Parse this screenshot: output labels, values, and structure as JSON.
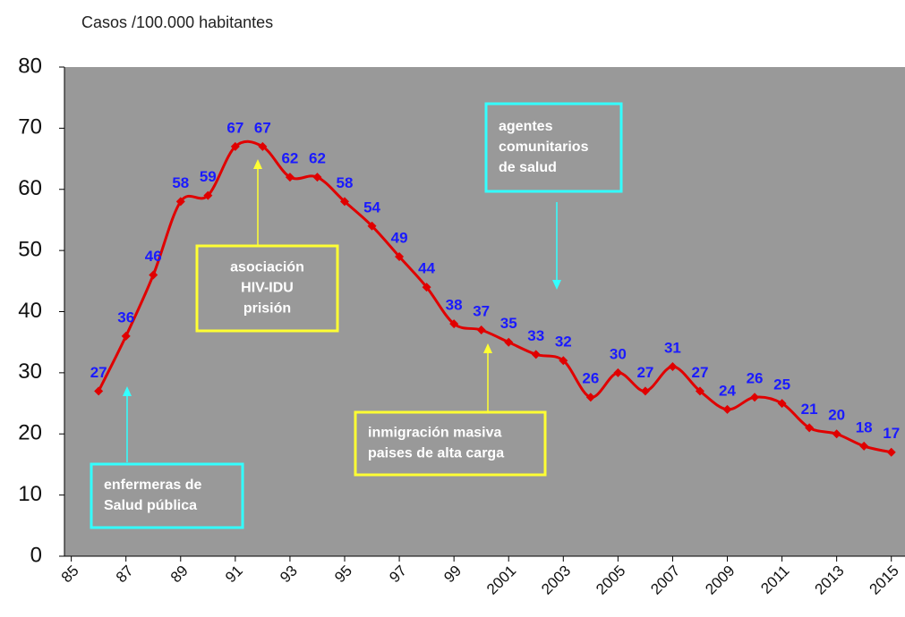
{
  "chart_data": {
    "type": "line",
    "title": "Casos /100.000 habitantes",
    "x": [
      1986,
      1987,
      1988,
      1989,
      1990,
      1991,
      1992,
      1993,
      1994,
      1995,
      1996,
      1997,
      1998,
      1999,
      2000,
      2001,
      2002,
      2003,
      2004,
      2005,
      2006,
      2007,
      2008,
      2009,
      2010,
      2011,
      2012,
      2013,
      2014,
      2015
    ],
    "series": [
      {
        "name": "Casos",
        "color": "#e00000",
        "values": [
          27,
          36,
          46,
          58,
          59,
          67,
          67,
          62,
          62,
          58,
          54,
          49,
          44,
          38,
          37,
          35,
          33,
          32,
          26,
          30,
          27,
          31,
          27,
          24,
          26,
          25,
          21,
          20,
          18,
          17
        ]
      }
    ],
    "label_color": "#1a1aff",
    "xlim": [
      1984.75,
      2015.5
    ],
    "xticks": [
      {
        "value": 1985,
        "label": "85"
      },
      {
        "value": 1987,
        "label": "87"
      },
      {
        "value": 1989,
        "label": "89"
      },
      {
        "value": 1991,
        "label": "91"
      },
      {
        "value": 1993,
        "label": "93"
      },
      {
        "value": 1995,
        "label": "95"
      },
      {
        "value": 1997,
        "label": "97"
      },
      {
        "value": 1999,
        "label": "99"
      },
      2001,
      2003,
      2005,
      2007,
      2009,
      2011,
      2013,
      2015
    ],
    "ylim": [
      0,
      80
    ],
    "yticks": [
      0,
      10,
      20,
      30,
      40,
      50,
      60,
      70,
      80
    ],
    "background": "#999999",
    "annotations": [
      {
        "text": [
          "enfermeras de",
          "Salud pública"
        ],
        "color": "#33ffff"
      },
      {
        "text": [
          "asociación",
          "HIV-IDU",
          "prisión"
        ],
        "color": "#ffff33"
      },
      {
        "text": [
          "inmigración masiva",
          "paises de alta carga"
        ],
        "color": "#ffff33"
      },
      {
        "text": [
          "agentes",
          "comunitarios",
          "de salud"
        ],
        "color": "#33ffff"
      }
    ]
  }
}
